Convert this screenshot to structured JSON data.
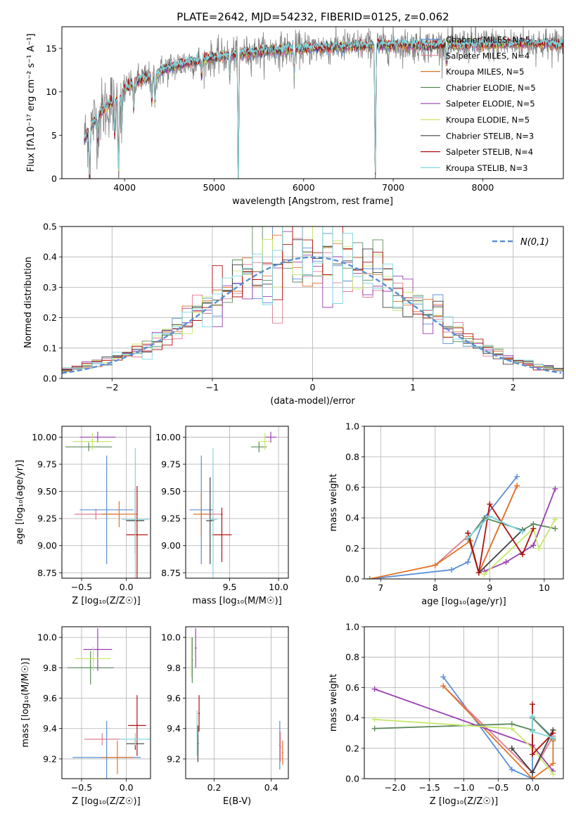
{
  "figure_title": "PLATE=2642, MJD=54232, FIBERID=0125, z=0.062",
  "chart_data": [
    {
      "id": "spectrum",
      "type": "line",
      "title": "PLATE=2642, MJD=54232, FIBERID=0125, z=0.062",
      "xlabel": "wavelength [Angstrom, rest frame]",
      "ylabel": "Flux [fλ10⁻¹⁷ erg cm⁻² s⁻¹ A⁻¹]",
      "xlim": [
        3300,
        8900
      ],
      "ylim": [
        0,
        17.5
      ],
      "xticks": [
        4000,
        5000,
        6000,
        7000,
        8000
      ],
      "yticks": [
        0,
        5,
        10,
        15
      ],
      "grid": false,
      "legend_position": "upper-right",
      "legend": [
        "Chabrier MILES, N_SSP=5",
        "Salpeter MILES, N_SSP=4",
        "Kroupa MILES, N_SSP=5",
        "Chabrier ELODIE, N_SSP=5",
        "Salpeter ELODIE, N_SSP=5",
        "Kroupa ELODIE, N_SSP=5",
        "Chabrier STELIB, N_SSP=3",
        "Salpeter STELIB, N_SSP=4",
        "Kroupa STELIB, N_SSP=3"
      ],
      "data_series": {
        "name": "data",
        "color": "#808080"
      },
      "continuum_points": {
        "x": [
          3550,
          3600,
          3650,
          3700,
          3750,
          3800,
          3850,
          3900,
          3950,
          4000,
          4100,
          4200,
          4300,
          4400,
          4500,
          4600,
          4700,
          4800,
          4900,
          5000,
          5200,
          5400,
          5600,
          5800,
          6000,
          6200,
          6400,
          6600,
          6800,
          7000,
          7200,
          7400,
          7600,
          7800,
          8000,
          8200,
          8400,
          8600,
          8800,
          8900
        ],
        "y": [
          4.5,
          5.5,
          6.5,
          7.2,
          7.8,
          8.3,
          8.8,
          8.9,
          9.3,
          10.3,
          11.0,
          11.5,
          11.7,
          12.3,
          12.8,
          13.1,
          13.4,
          13.6,
          13.7,
          13.9,
          14.3,
          14.5,
          14.7,
          14.9,
          15.0,
          15.1,
          15.2,
          15.3,
          15.3,
          15.4,
          15.4,
          15.3,
          15.4,
          15.4,
          15.5,
          15.5,
          15.6,
          15.6,
          15.5,
          15.5
        ]
      },
      "noise_amplitude": 1.2,
      "dips": [
        {
          "x": 3610,
          "depth": 6
        },
        {
          "x": 3700,
          "depth": 3
        },
        {
          "x": 3890,
          "depth": 4
        },
        {
          "x": 3933,
          "depth": 8
        },
        {
          "x": 3969,
          "depth": 4
        },
        {
          "x": 4102,
          "depth": 3
        },
        {
          "x": 4305,
          "depth": 3
        },
        {
          "x": 4341,
          "depth": 3
        },
        {
          "x": 4861,
          "depth": 2
        },
        {
          "x": 5175,
          "depth": 2.5
        },
        {
          "x": 5270,
          "depth": 15
        },
        {
          "x": 5893,
          "depth": 3
        },
        {
          "x": 6800,
          "depth": 15
        },
        {
          "x": 7600,
          "depth": 2
        }
      ]
    },
    {
      "id": "residuals",
      "type": "line",
      "xlabel": "(data-model)/error",
      "ylabel": "Normed distribution",
      "xlim": [
        -2.5,
        2.5
      ],
      "ylim": [
        0,
        0.5
      ],
      "xticks": [
        -2,
        -1,
        0,
        1,
        2
      ],
      "yticks": [
        0.0,
        0.1,
        0.2,
        0.3,
        0.4,
        0.5
      ],
      "grid": true,
      "legend_position": "upper-right",
      "legend": [
        "N(0,1)"
      ],
      "bin_width": 0.1,
      "reference_curve": {
        "name": "N(0,1)",
        "mean": 0,
        "sigma": 1,
        "color": "#5b8fd6"
      }
    },
    {
      "id": "age_vs_Z",
      "type": "scatter",
      "xlabel": "Z [log₁₀(Z/Z☉)]",
      "ylabel": "age [log₁₀(age/yr)]",
      "xlim": [
        -0.72,
        0.27
      ],
      "ylim": [
        8.7,
        10.1
      ],
      "xticks": [
        -0.5,
        0.0
      ],
      "yticks": [
        8.75,
        9.0,
        9.25,
        9.5,
        9.75,
        10.0
      ],
      "grid": true,
      "crosses": [
        {
          "color": "#5b8fd6",
          "x": -0.22,
          "xerr": 0.3,
          "y": 9.33,
          "yerr": 0.5
        },
        {
          "color": "#e07b91",
          "x": -0.34,
          "xerr": 0.24,
          "y": 9.29,
          "yerr": 0.05
        },
        {
          "color": "#e0742a",
          "x": -0.08,
          "xerr": 0.2,
          "y": 9.29,
          "yerr": 0.12
        },
        {
          "color": "#5c8a5c",
          "x": -0.42,
          "xerr": 0.26,
          "y": 9.91,
          "yerr": 0.04
        },
        {
          "color": "#9a40b0",
          "x": -0.32,
          "xerr": 0.2,
          "y": 10.0,
          "yerr": 0.05
        },
        {
          "color": "#c6e86b",
          "x": -0.38,
          "xerr": 0.22,
          "y": 9.96,
          "yerr": 0.08
        },
        {
          "color": "#404040",
          "x": 0.1,
          "xerr": 0.1,
          "y": 9.23,
          "yerr": 0.3
        },
        {
          "color": "#b01010",
          "x": 0.12,
          "xerr": 0.12,
          "y": 9.1,
          "yerr": 0.45
        },
        {
          "color": "#7fd8df",
          "x": 0.1,
          "xerr": 0.15,
          "y": 9.24,
          "yerr": 0.66
        }
      ]
    },
    {
      "id": "age_vs_mass",
      "type": "scatter",
      "xlabel": "mass [log₁₀(M/M☉)]",
      "xlim": [
        9.05,
        10.1
      ],
      "ylim": [
        8.7,
        10.1
      ],
      "xticks": [
        9.5,
        10.0
      ],
      "yticks": [
        8.75,
        9.0,
        9.25,
        9.5,
        9.75,
        10.0
      ],
      "grid": true,
      "crosses": [
        {
          "color": "#5b8fd6",
          "x": 9.21,
          "xerr": 0.12,
          "y": 9.33,
          "yerr": 0.5
        },
        {
          "color": "#e07b91",
          "x": 9.33,
          "xerr": 0.1,
          "y": 9.29,
          "yerr": 0.05
        },
        {
          "color": "#e0742a",
          "x": 9.21,
          "xerr": 0.08,
          "y": 9.29,
          "yerr": 0.2
        },
        {
          "color": "#5c8a5c",
          "x": 9.8,
          "xerr": 0.08,
          "y": 9.91,
          "yerr": 0.05
        },
        {
          "color": "#9a40b0",
          "x": 9.92,
          "xerr": 0.06,
          "y": 10.0,
          "yerr": 0.05
        },
        {
          "color": "#c6e86b",
          "x": 9.86,
          "xerr": 0.05,
          "y": 9.96,
          "yerr": 0.08
        },
        {
          "color": "#404040",
          "x": 9.3,
          "xerr": 0.04,
          "y": 9.23,
          "yerr": 0.4
        },
        {
          "color": "#b01010",
          "x": 9.42,
          "xerr": 0.1,
          "y": 9.1,
          "yerr": 0.25
        },
        {
          "color": "#7fd8df",
          "x": 9.33,
          "xerr": 0.04,
          "y": 9.24,
          "yerr": 0.66
        }
      ]
    },
    {
      "id": "weight_vs_age",
      "type": "line",
      "xlabel": "age [log₁₀(age/yr)]",
      "ylabel": "mass weight",
      "xlim": [
        6.7,
        10.35
      ],
      "ylim": [
        0,
        1.0
      ],
      "xticks": [
        7,
        8,
        9,
        10
      ],
      "yticks": [
        0.0,
        0.2,
        0.4,
        0.6,
        0.8,
        1.0
      ],
      "grid": true,
      "series": [
        {
          "color": "#5b8fd6",
          "x": [
            6.8,
            8.3,
            8.6,
            8.9,
            9.5
          ],
          "y": [
            0.0,
            0.06,
            0.11,
            0.4,
            0.67
          ]
        },
        {
          "color": "#e07b91",
          "x": [
            8.0,
            8.6,
            8.8,
            9.5
          ],
          "y": [
            0.09,
            0.28,
            0.04,
            0.61
          ]
        },
        {
          "color": "#e0742a",
          "x": [
            6.8,
            8.0,
            8.65,
            8.8,
            9.5
          ],
          "y": [
            0.0,
            0.09,
            0.25,
            0.04,
            0.61
          ]
        },
        {
          "color": "#5c8a5c",
          "x": [
            8.6,
            8.9,
            9.6,
            9.8,
            10.2
          ],
          "y": [
            0.26,
            0.4,
            0.32,
            0.36,
            0.33
          ]
        },
        {
          "color": "#9a40b0",
          "x": [
            8.9,
            9.3,
            9.8,
            10.2
          ],
          "y": [
            0.05,
            0.11,
            0.22,
            0.59
          ]
        },
        {
          "color": "#c6e86b",
          "x": [
            8.9,
            9.8,
            9.9,
            10.2
          ],
          "y": [
            0.03,
            0.33,
            0.2,
            0.39
          ]
        },
        {
          "color": "#404040",
          "x": [
            8.6,
            8.8,
            9.6
          ],
          "y": [
            0.3,
            0.04,
            0.32
          ]
        },
        {
          "color": "#b01010",
          "x": [
            8.6,
            8.8,
            9.0,
            9.6,
            9.8
          ],
          "y": [
            0.3,
            0.04,
            0.49,
            0.16,
            0.33
          ]
        },
        {
          "color": "#7fd8df",
          "x": [
            8.6,
            9.0,
            9.6
          ],
          "y": [
            0.27,
            0.41,
            0.31
          ]
        }
      ]
    },
    {
      "id": "mass_vs_Z",
      "type": "scatter",
      "xlabel": "Z [log₁₀(Z/Z☉)]",
      "ylabel": "mass [log₁₀(M/M☉)]",
      "xlim": [
        -0.72,
        0.27
      ],
      "ylim": [
        9.07,
        10.07
      ],
      "xticks": [
        -0.5,
        0.0
      ],
      "yticks": [
        9.2,
        9.4,
        9.6,
        9.8,
        10.0
      ],
      "grid": true,
      "crosses": [
        {
          "color": "#5b8fd6",
          "x": -0.22,
          "xerr": 0.38,
          "y": 9.21,
          "yerr": 0.24
        },
        {
          "color": "#e07b91",
          "x": -0.27,
          "xerr": 0.2,
          "y": 9.33,
          "yerr": 0.04
        },
        {
          "color": "#e0742a",
          "x": -0.1,
          "xerr": 0.18,
          "y": 9.21,
          "yerr": 0.11
        },
        {
          "color": "#5c8a5c",
          "x": -0.4,
          "xerr": 0.26,
          "y": 9.8,
          "yerr": 0.11
        },
        {
          "color": "#9a40b0",
          "x": -0.32,
          "xerr": 0.16,
          "y": 9.92,
          "yerr": 0.14
        },
        {
          "color": "#c6e86b",
          "x": -0.37,
          "xerr": 0.2,
          "y": 9.86,
          "yerr": 0.08
        },
        {
          "color": "#404040",
          "x": 0.1,
          "xerr": 0.1,
          "y": 9.3,
          "yerr": 0.04
        },
        {
          "color": "#b01010",
          "x": 0.12,
          "xerr": 0.1,
          "y": 9.42,
          "yerr": 0.2
        },
        {
          "color": "#7fd8df",
          "x": 0.1,
          "xerr": 0.18,
          "y": 9.33,
          "yerr": 0.04
        }
      ]
    },
    {
      "id": "mass_vs_ebv",
      "type": "scatter",
      "xlabel": "E(B-V)",
      "xlim": [
        0.1,
        0.46
      ],
      "ylim": [
        9.07,
        10.07
      ],
      "xticks": [
        0.2,
        0.4
      ],
      "yticks": [
        9.2,
        9.4,
        9.6,
        9.8,
        10.0
      ],
      "grid": true,
      "crosses": [
        {
          "color": "#5b8fd6",
          "x": 0.43,
          "xerr": 0.003,
          "y": 9.29,
          "yerr": 0.16
        },
        {
          "color": "#e07b91",
          "x": 0.432,
          "xerr": 0.003,
          "y": 9.28,
          "yerr": 0.1
        },
        {
          "color": "#e0742a",
          "x": 0.44,
          "xerr": 0.003,
          "y": 9.24,
          "yerr": 0.08
        },
        {
          "color": "#5c8a5c",
          "x": 0.123,
          "xerr": 0.003,
          "y": 9.85,
          "yerr": 0.15
        },
        {
          "color": "#9a40b0",
          "x": 0.135,
          "xerr": 0.003,
          "y": 9.93,
          "yerr": 0.13
        },
        {
          "color": "#c6e86b",
          "x": 0.12,
          "xerr": 0.003,
          "y": 9.87,
          "yerr": 0.13
        },
        {
          "color": "#404040",
          "x": 0.143,
          "xerr": 0.003,
          "y": 9.3,
          "yerr": 0.12
        },
        {
          "color": "#b01010",
          "x": 0.147,
          "xerr": 0.003,
          "y": 9.5,
          "yerr": 0.12
        },
        {
          "color": "#7fd8df",
          "x": 0.14,
          "xerr": 0.003,
          "y": 9.37,
          "yerr": 0.15
        }
      ]
    },
    {
      "id": "weight_vs_Z",
      "type": "line",
      "xlabel": "Z [log₁₀(Z/Z☉)]",
      "ylabel": "mass weight",
      "xlim": [
        -2.45,
        0.45
      ],
      "ylim": [
        0,
        1.0
      ],
      "xticks": [
        -2.0,
        -1.5,
        -1.0,
        -0.5,
        0.0
      ],
      "yticks": [
        0.0,
        0.2,
        0.4,
        0.6,
        0.8,
        1.0
      ],
      "grid": true,
      "series": [
        {
          "color": "#5b8fd6",
          "x": [
            -1.3,
            -0.3,
            0.0,
            0.0,
            0.3
          ],
          "y": [
            0.67,
            0.06,
            0.0,
            0.4,
            0.27
          ]
        },
        {
          "color": "#e07b91",
          "x": [
            -1.3,
            0.0,
            0.3
          ],
          "y": [
            0.61,
            0.04,
            0.28
          ]
        },
        {
          "color": "#e0742a",
          "x": [
            -1.3,
            0.0,
            0.3,
            0.3
          ],
          "y": [
            0.61,
            0.0,
            0.1,
            0.25
          ]
        },
        {
          "color": "#5c8a5c",
          "x": [
            -2.3,
            -0.3,
            0.0,
            0.0,
            0.3
          ],
          "y": [
            0.33,
            0.36,
            0.32,
            0.4,
            0.26
          ]
        },
        {
          "color": "#9a40b0",
          "x": [
            -2.3,
            0.0,
            0.3
          ],
          "y": [
            0.59,
            0.22,
            0.05
          ]
        },
        {
          "color": "#c6e86b",
          "x": [
            -2.3,
            -0.3,
            0.0,
            0.3
          ],
          "y": [
            0.39,
            0.33,
            0.2,
            0.03
          ]
        },
        {
          "color": "#404040",
          "x": [
            -0.3,
            0.0,
            0.3
          ],
          "y": [
            0.2,
            0.04,
            0.32
          ]
        },
        {
          "color": "#b01010",
          "x": [
            0.0,
            0.0,
            0.3
          ],
          "y": [
            0.49,
            0.16,
            0.3
          ]
        },
        {
          "color": "#7fd8df",
          "x": [
            0.0,
            0.0,
            0.3
          ],
          "y": [
            0.41,
            0.31,
            0.27
          ]
        }
      ]
    }
  ],
  "colors": [
    "#5b8fd6",
    "#e07b91",
    "#e0742a",
    "#5c8a5c",
    "#9a40b0",
    "#c6e86b",
    "#404040",
    "#b01010",
    "#7fd8df"
  ]
}
